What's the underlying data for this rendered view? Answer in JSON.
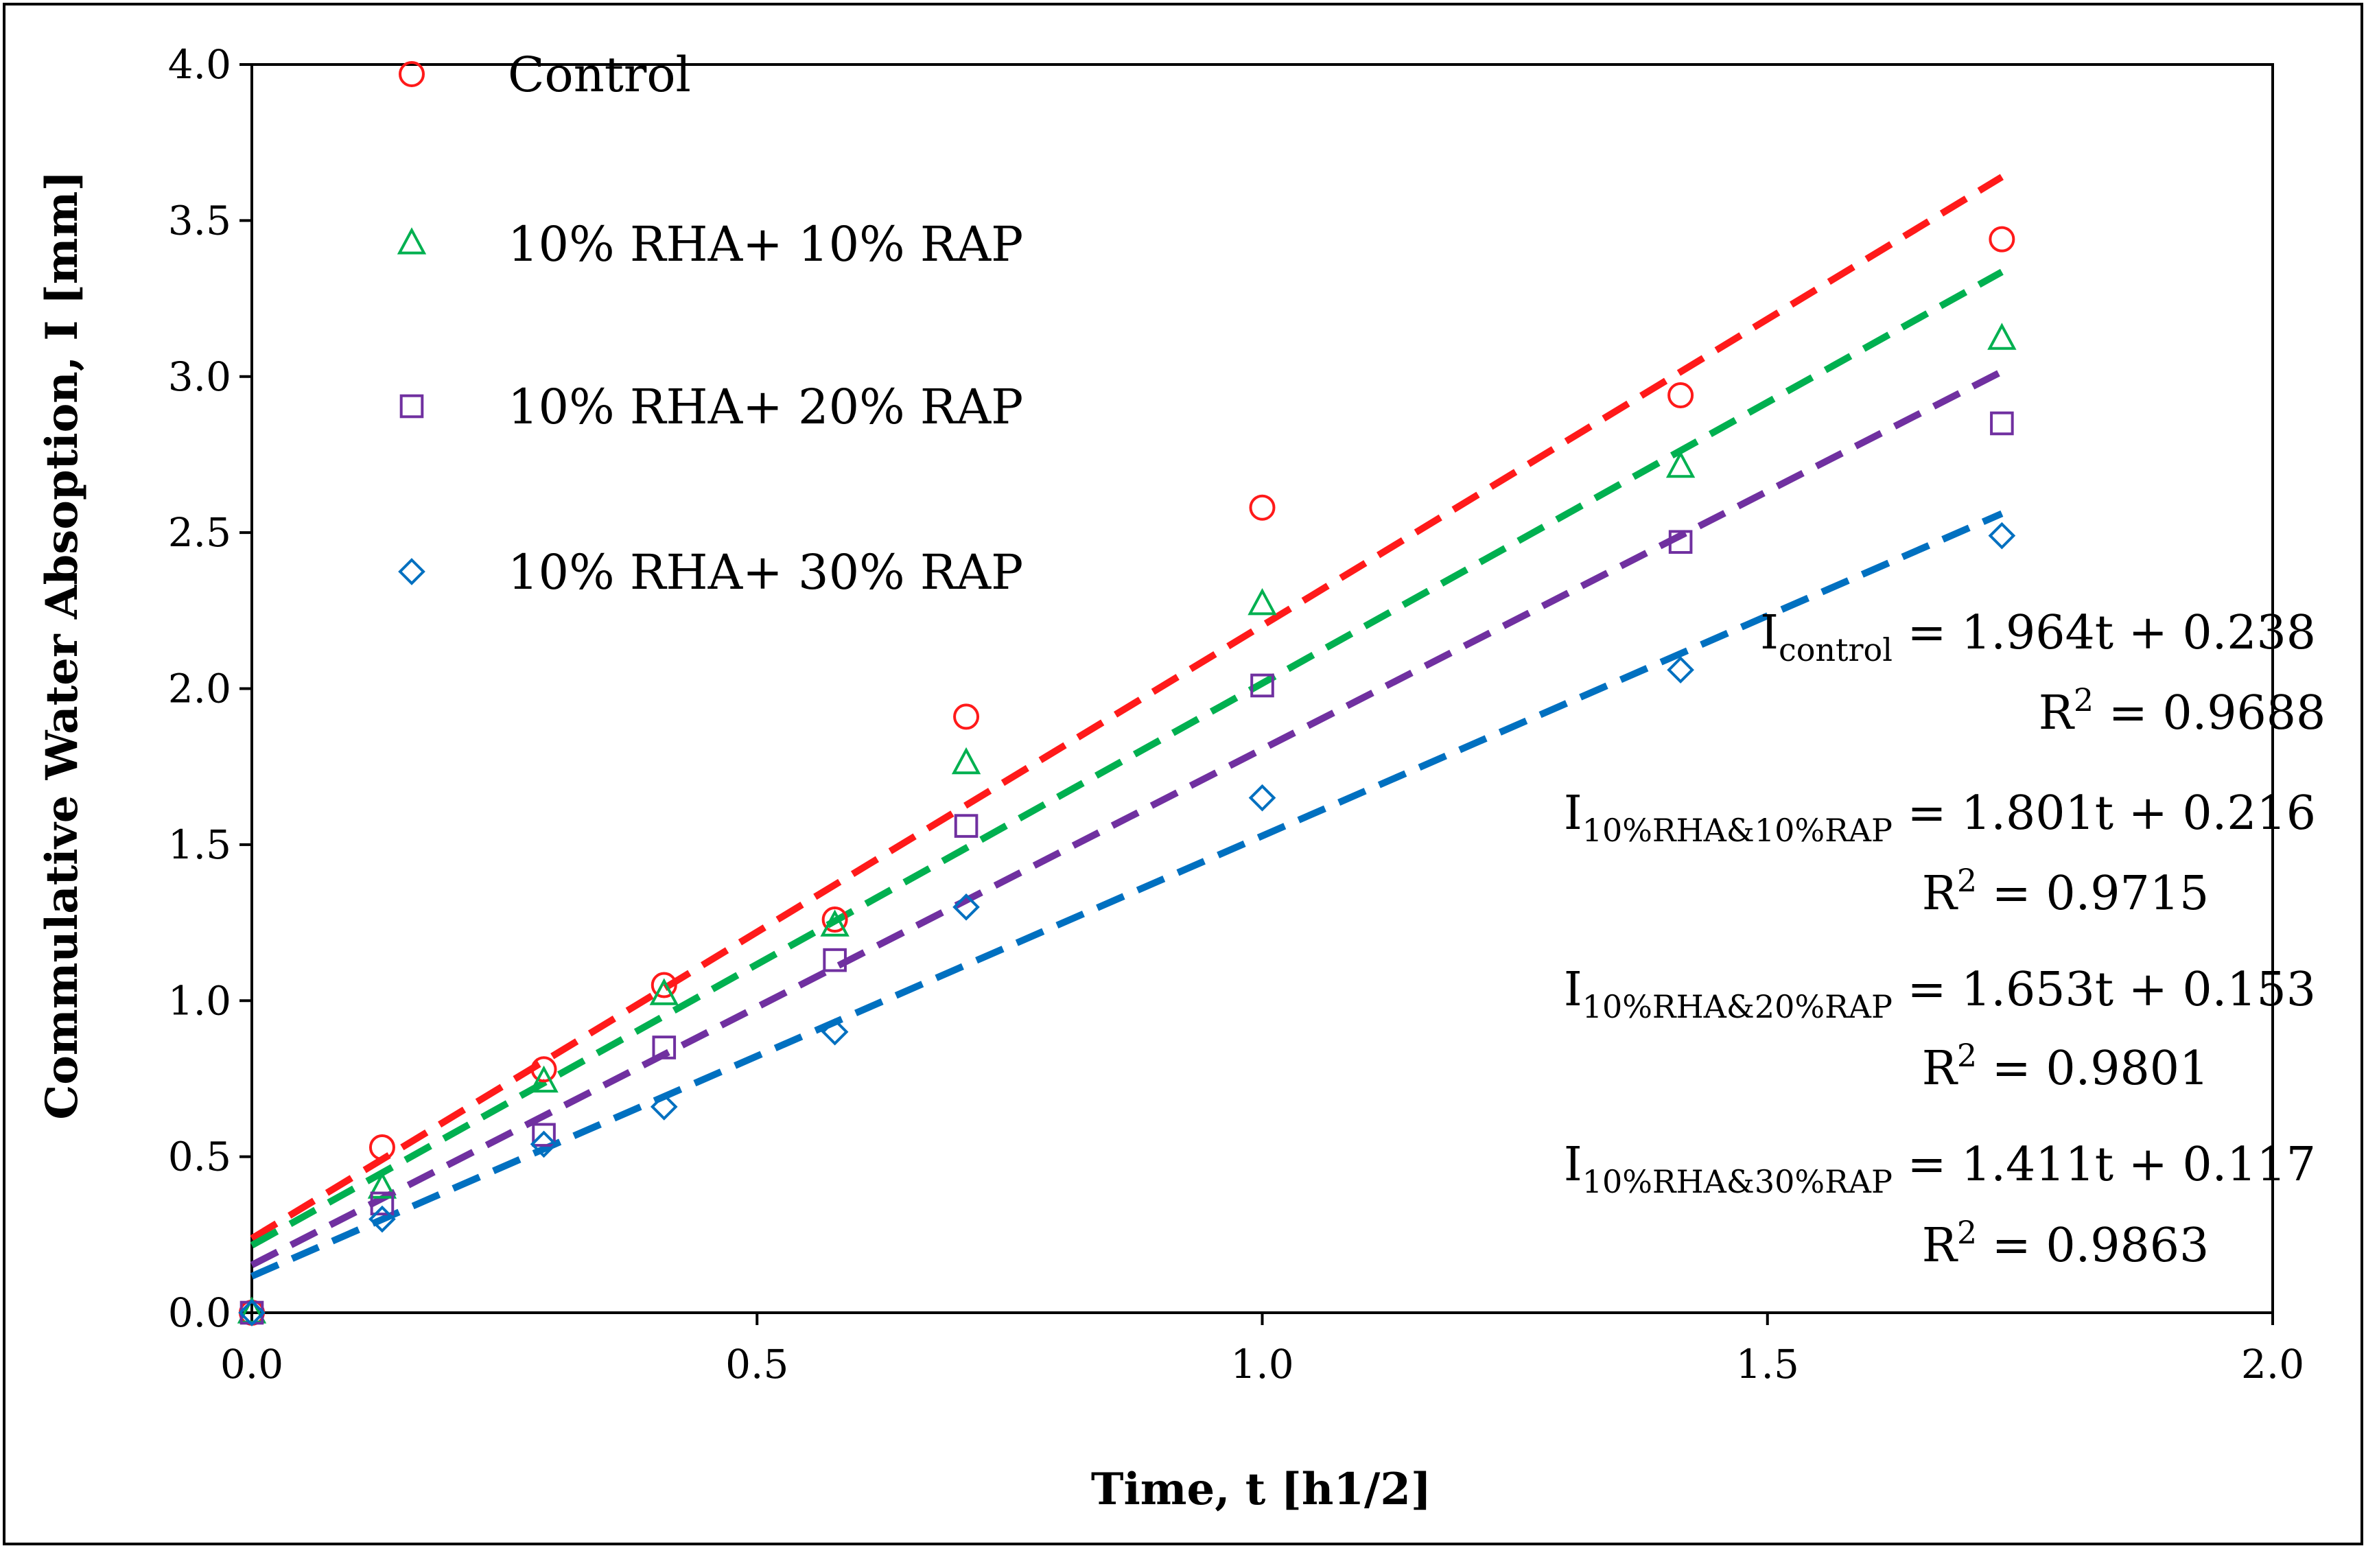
{
  "chart_data": {
    "type": "scatter",
    "xlabel": "Time, t [h1/2]",
    "ylabel": "Commulative Water Absoption, I [mm]",
    "xlim": [
      0,
      2.0
    ],
    "ylim": [
      0,
      4.0
    ],
    "xticks": [
      0,
      0.5,
      1.0,
      1.5,
      2.0
    ],
    "xtick_labels": [
      "0.0",
      "0.5",
      "1.0",
      "1.5",
      "2.0"
    ],
    "yticks": [
      0,
      0.5,
      1.0,
      1.5,
      2.0,
      2.5,
      3.0,
      3.5,
      4.0
    ],
    "ytick_labels": [
      "0.0",
      "0.5",
      "1.0",
      "1.5",
      "2.0",
      "2.5",
      "3.0",
      "3.5",
      "4.0"
    ],
    "grid": false,
    "legend_position": "top-left",
    "x": [
      0,
      0.129,
      0.289,
      0.408,
      0.577,
      0.707,
      1.0,
      1.414,
      1.732
    ],
    "series": [
      {
        "name": "Control",
        "color": "#ff1a1a",
        "marker": "circle",
        "values": [
          0.0,
          0.53,
          0.78,
          1.05,
          1.26,
          1.91,
          2.58,
          2.94,
          3.44
        ],
        "trend": {
          "slope": 1.964,
          "intercept": 0.238
        },
        "eq_subscript": "control",
        "eq_text": " = 1.964t + 0.238",
        "r2_text": " = 0.9688"
      },
      {
        "name": "10% RHA+ 10% RAP",
        "color": "#00b050",
        "marker": "triangle",
        "values": [
          0.0,
          0.4,
          0.74,
          1.02,
          1.24,
          1.76,
          2.27,
          2.71,
          3.12
        ],
        "trend": {
          "slope": 1.801,
          "intercept": 0.216
        },
        "eq_subscript": "10%RHA&10%RAP",
        "eq_text": " = 1.801t + 0.216",
        "r2_text": " = 0.9715"
      },
      {
        "name": "10% RHA+ 20% RAP",
        "color": "#7030a0",
        "marker": "square",
        "values": [
          0.0,
          0.35,
          0.57,
          0.85,
          1.13,
          1.56,
          2.01,
          2.47,
          2.85
        ],
        "trend": {
          "slope": 1.653,
          "intercept": 0.153
        },
        "eq_subscript": "10%RHA&20%RAP",
        "eq_text": " = 1.653t + 0.153",
        "r2_text": " = 0.9801"
      },
      {
        "name": "10% RHA+ 30% RAP",
        "color": "#0070c0",
        "marker": "diamond",
        "values": [
          0.0,
          0.3,
          0.54,
          0.66,
          0.9,
          1.3,
          1.65,
          2.06,
          2.49
        ],
        "trend": {
          "slope": 1.411,
          "intercept": 0.117
        },
        "eq_subscript": "10%RHA&30%RAP",
        "eq_text": " = 1.411t + 0.117",
        "r2_text": " = 0.9863"
      }
    ],
    "eq_symbol": "I",
    "r2_symbol": "R",
    "r2_exponent": "2"
  }
}
